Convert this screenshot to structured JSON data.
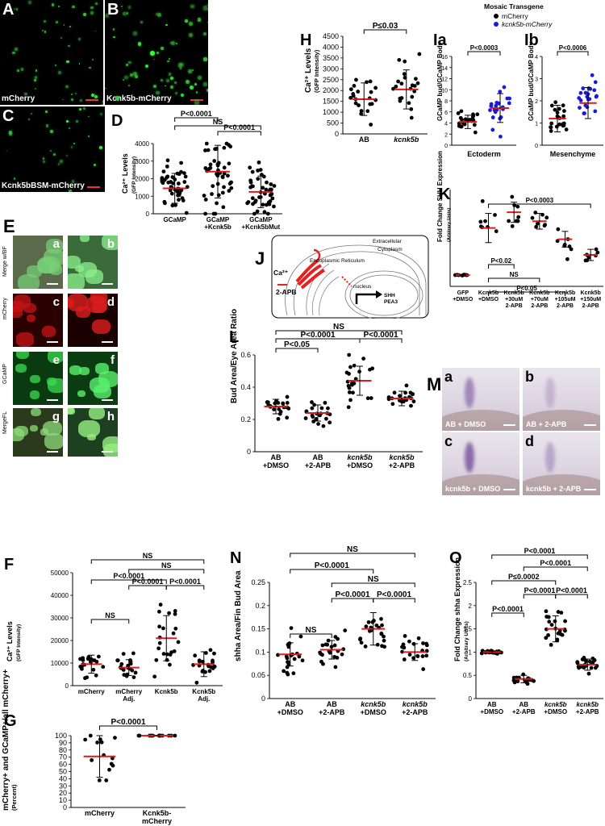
{
  "panels": {
    "A": {
      "letter": "A",
      "label": "mCherry"
    },
    "B": {
      "letter": "B",
      "label": "Kcnk5b-mCherry"
    },
    "C": {
      "letter": "C",
      "label": "Kcnk5bBSM-mCherry"
    },
    "E": {
      "letter": "E",
      "rows": [
        "Merge w/BF",
        "mCherry",
        "GCaMP",
        "MergeFL"
      ],
      "tiles": [
        "a",
        "b",
        "c",
        "d",
        "e",
        "f",
        "g",
        "h"
      ]
    },
    "J": {
      "letter": "J",
      "extracellular": "Extracellular",
      "cytoplasm": "Cytoplasm",
      "er": "Endoplasmic Reticulum",
      "ca": "Ca²⁺",
      "drug": "2-APB",
      "nucleus": "nucleus",
      "genes": [
        "SHH",
        "PEA3"
      ]
    },
    "M": {
      "letter": "M",
      "tiles": [
        {
          "letter": "a",
          "caption": "AB + DMSO"
        },
        {
          "letter": "b",
          "caption": "AB + 2-APB"
        },
        {
          "letter": "c",
          "caption": "kcnk5b + DMSO"
        },
        {
          "letter": "d",
          "caption": "kcnk5b + 2-APB"
        }
      ]
    }
  },
  "legend": {
    "title": "Mosaic Transgene",
    "items": [
      {
        "name": "mCherry",
        "color": "#000000"
      },
      {
        "name": "kcnk5b-mCherry",
        "color": "#1a1adb"
      }
    ]
  },
  "chart_data": [
    {
      "id": "D",
      "type": "scatter",
      "ylabel": "Ca²⁺ Levels",
      "ylabel_sub": "(GFP Intensity)",
      "categories": [
        "GCaMP",
        "GCaMP +Kcnk5b",
        "GCaMP +Kcnk5bMut"
      ],
      "ylim": [
        0,
        4000
      ],
      "yticks": [
        0,
        1000,
        2000,
        3000,
        4000
      ],
      "means": [
        1450,
        2400,
        1250
      ],
      "sd": [
        850,
        1500,
        900
      ],
      "comparisons": [
        {
          "from": 0,
          "to": 2,
          "label": "NS"
        },
        {
          "from": 0,
          "to": 1,
          "label": "P<0.0001"
        },
        {
          "from": 1,
          "to": 2,
          "label": "P<0.0001"
        }
      ]
    },
    {
      "id": "H",
      "type": "scatter",
      "ylabel": "Ca²⁺ Levels",
      "ylabel_sub": "(GFP Intensity)",
      "categories": [
        "AB",
        "kcnk5b"
      ],
      "ylim": [
        0,
        4500
      ],
      "yticks": [
        0,
        500,
        1000,
        1500,
        2000,
        2500,
        3000,
        3500,
        4000,
        4500
      ],
      "means": [
        1600,
        2050
      ],
      "sd": [
        750,
        900
      ],
      "comparisons": [
        {
          "from": 0,
          "to": 1,
          "label": "P≤0.03"
        }
      ]
    },
    {
      "id": "Ia",
      "type": "scatter",
      "ylabel": "GCaMP bud/GCaMP Body",
      "xlabel": "Ectoderm",
      "categories": [
        "mCherry",
        "kcnk5b-mCherry"
      ],
      "ylim": [
        0,
        16
      ],
      "yticks": [
        0,
        2,
        4,
        6,
        8,
        10,
        12,
        14,
        16
      ],
      "means": [
        4.2,
        6.7
      ],
      "sd": [
        1.2,
        2.6
      ],
      "comparisons": [
        {
          "from": 0,
          "to": 1,
          "label": "P<0.0003"
        }
      ]
    },
    {
      "id": "Ib",
      "type": "scatter",
      "ylabel": "GCaMP bud/GCaMP Body",
      "xlabel": "Mesenchyme",
      "categories": [
        "mCherry",
        "kcnk5b-mCherry"
      ],
      "ylim": [
        0,
        4
      ],
      "yticks": [
        0,
        1,
        2,
        3,
        4
      ],
      "means": [
        1.2,
        1.9
      ],
      "sd": [
        0.6,
        0.7
      ],
      "comparisons": [
        {
          "from": 0,
          "to": 1,
          "label": "P<0.0006"
        }
      ]
    },
    {
      "id": "K",
      "type": "scatter",
      "ylabel": "Fold Change SHH Expression",
      "ylabel_sub": "(Arbitrary Units)",
      "categories": [
        "GFP +DMSO",
        "Kcnk5b +DMSO",
        "Kcnk5b +30uM 2-APB",
        "Kcnk5b +70uM 2-APB",
        "Kcnk5b +105uM 2-APB",
        "Kcnk5b +150uM 2-APB"
      ],
      "means": [
        1.0,
        5.2,
        6.6,
        5.8,
        4.2,
        2.8
      ],
      "sd": [
        0.05,
        1.3,
        0.9,
        0.7,
        0.7,
        0.5
      ],
      "comparisons": [
        {
          "from": 1,
          "to": 5,
          "label": "P<0.0003"
        },
        {
          "from": 1,
          "to": 2,
          "label": "P<0.02"
        },
        {
          "from": 1,
          "to": 3,
          "label": "NS"
        },
        {
          "from": 1,
          "to": 4,
          "label": "P<0.05"
        }
      ]
    },
    {
      "id": "L",
      "type": "scatter",
      "ylabel": "Bud Area/Eye Area Ratio",
      "categories": [
        "AB +DMSO",
        "AB +2-APB",
        "kcnk5b +DMSO",
        "kcnk5b +2-APB"
      ],
      "ylim": [
        0,
        0.6
      ],
      "yticks": [
        0,
        0.2,
        0.4,
        0.6
      ],
      "means": [
        0.28,
        0.24,
        0.44,
        0.33
      ],
      "sd": [
        0.045,
        0.05,
        0.09,
        0.045
      ],
      "comparisons": [
        {
          "from": 0,
          "to": 3,
          "label": "NS"
        },
        {
          "from": 0,
          "to": 2,
          "label": "P<0.0001"
        },
        {
          "from": 2,
          "to": 3,
          "label": "P<0.0001"
        },
        {
          "from": 0,
          "to": 1,
          "label": "P<0.05"
        }
      ]
    },
    {
      "id": "F",
      "type": "scatter",
      "ylabel": "Ca²⁺ Levels",
      "ylabel_sub": "(GFP Intensity)",
      "categories": [
        "mCherry",
        "mCherry Adj.",
        "Kcnk5b",
        "Kcnk5b Adj."
      ],
      "ylim": [
        0,
        50000
      ],
      "yticks": [
        0,
        10000,
        20000,
        30000,
        40000,
        50000
      ],
      "means": [
        9500,
        8000,
        21000,
        9500
      ],
      "sd": [
        4000,
        3500,
        10000,
        5500
      ],
      "comparisons": [
        {
          "from": 0,
          "to": 3,
          "label": "NS"
        },
        {
          "from": 1,
          "to": 3,
          "label": "NS"
        },
        {
          "from": 0,
          "to": 2,
          "label": "P<0.0001"
        },
        {
          "from": 1,
          "to": 2,
          "label": "P<0.0001"
        },
        {
          "from": 2,
          "to": 3,
          "label": "P<0.0001"
        },
        {
          "from": 0,
          "to": 1,
          "label": "NS"
        }
      ]
    },
    {
      "id": "G",
      "type": "scatter",
      "ylabel": "mCherry+ and GCaMP+/all mCherry+",
      "ylabel_sub": "(Percent)",
      "categories": [
        "mCherry",
        "Kcnk5b- mCherry"
      ],
      "ylim": [
        0,
        100
      ],
      "yticks": [
        0,
        10,
        20,
        30,
        40,
        50,
        60,
        70,
        80,
        90,
        100
      ],
      "means": [
        71,
        100
      ],
      "sd": [
        29,
        0
      ],
      "comparisons": [
        {
          "from": 0,
          "to": 1,
          "label": "P<0.0001"
        }
      ]
    },
    {
      "id": "N",
      "type": "scatter",
      "ylabel": "shha Area/Fin Bud Area",
      "categories": [
        "AB +DMSO",
        "AB +2-APB",
        "kcnk5b +DMSO",
        "kcnk5b +2-APB"
      ],
      "ylim": [
        0,
        0.25
      ],
      "yticks": [
        0,
        0.05,
        0.1,
        0.15,
        0.2,
        0.25
      ],
      "means": [
        0.095,
        0.105,
        0.15,
        0.1
      ],
      "sd": [
        0.025,
        0.02,
        0.035,
        0.018
      ],
      "comparisons": [
        {
          "from": 0,
          "to": 3,
          "label": "NS"
        },
        {
          "from": 0,
          "to": 2,
          "label": "P<0.0001"
        },
        {
          "from": 1,
          "to": 3,
          "label": "NS"
        },
        {
          "from": 1,
          "to": 2,
          "label": "P<0.0001"
        },
        {
          "from": 2,
          "to": 3,
          "label": "P<0.0001"
        },
        {
          "from": 0,
          "to": 1,
          "label": "NS"
        }
      ]
    },
    {
      "id": "O",
      "type": "scatter",
      "ylabel": "Fold Change shha Expression",
      "ylabel_sub": "(Arbitrary Units)",
      "categories": [
        "AB +DMSO",
        "AB +2-APB",
        "kcnk5b +DMSO",
        "kcnk5b +2-APB"
      ],
      "ylim": [
        0,
        2.5
      ],
      "yticks": [
        0,
        0.5,
        1.0,
        1.5,
        2.0,
        2.5
      ],
      "means": [
        1.0,
        0.42,
        1.5,
        0.73
      ],
      "sd": [
        0.02,
        0.08,
        0.28,
        0.12
      ],
      "comparisons": [
        {
          "from": 0,
          "to": 3,
          "label": "P<0.0001"
        },
        {
          "from": 1,
          "to": 3,
          "label": "P<0.0001"
        },
        {
          "from": 0,
          "to": 2,
          "label": "P≤0.0002"
        },
        {
          "from": 1,
          "to": 2,
          "label": "P<0.0001"
        },
        {
          "from": 2,
          "to": 3,
          "label": "P<0.0001"
        },
        {
          "from": 0,
          "to": 1,
          "label": "P<0.0001"
        }
      ]
    }
  ]
}
